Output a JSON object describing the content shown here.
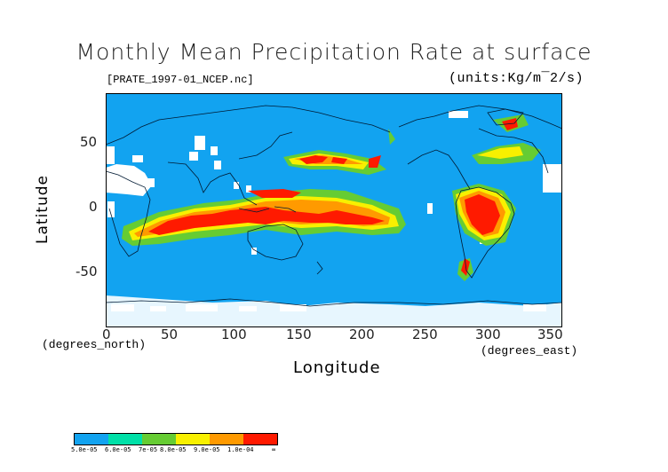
{
  "title": "Monthly Mean Precipitation Rate at surface",
  "file_label": "[PRATE_1997-01_NCEP.nc]",
  "units_label": "(units:Kg/m¯2/s)",
  "y_axis": {
    "label": "Latitude",
    "unit_label": "(degrees_north)",
    "ticks": [
      {
        "label": "50",
        "value": 50
      },
      {
        "label": "0",
        "value": 0
      },
      {
        "label": "-50",
        "value": -50
      }
    ]
  },
  "x_axis": {
    "label": "Longitude",
    "unit_label": "(degrees_east)",
    "ticks": [
      "0",
      "50",
      "100",
      "150",
      "200",
      "250",
      "300",
      "350"
    ]
  },
  "colors": {
    "ocean_bg": "#12a3f0",
    "missing": "#ffffff"
  },
  "legend": {
    "colors": [
      "#12a3f0",
      "#00e0a8",
      "#66cc33",
      "#f8f000",
      "#ff9a00",
      "#ff1a00"
    ],
    "labels": [
      "5.0e-05",
      "6.0e-05",
      "7e-05",
      "8.0e-05",
      "9.0e-05",
      "1.0e-04",
      "∞"
    ]
  }
}
